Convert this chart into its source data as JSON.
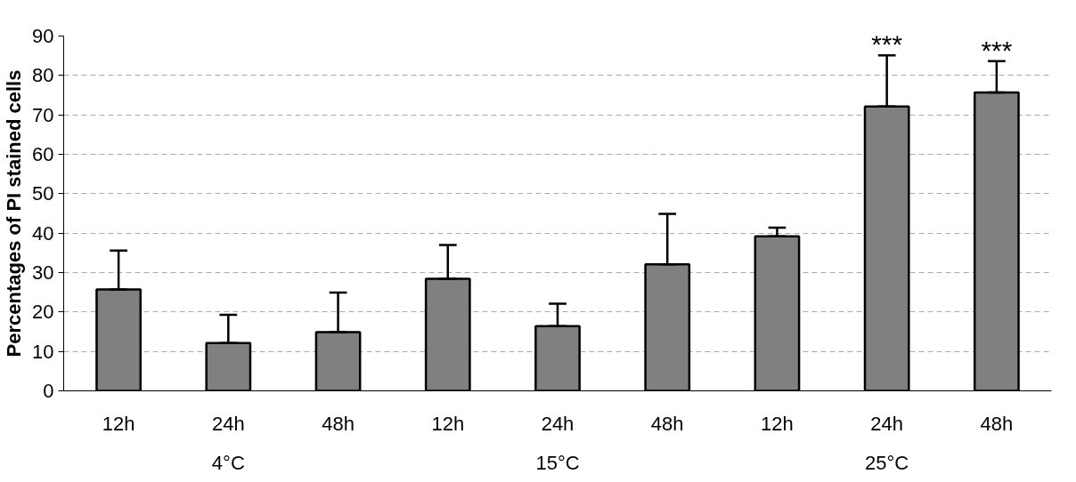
{
  "chart_data": {
    "type": "bar",
    "ylabel": "Percentages of PI stained cells",
    "categories": [
      "12h",
      "24h",
      "48h",
      "12h",
      "24h",
      "48h",
      "12h",
      "24h",
      "48h"
    ],
    "values": [
      25.7,
      12.1,
      14.9,
      28.4,
      16.4,
      32.1,
      39.2,
      72.1,
      75.7
    ],
    "errors": [
      [
        25.7,
        35.6
      ],
      [
        12.1,
        19.3
      ],
      [
        14.9,
        24.9
      ],
      [
        28.4,
        37.0
      ],
      [
        16.4,
        22.1
      ],
      [
        32.1,
        44.9
      ],
      [
        39.2,
        41.4
      ],
      [
        72.1,
        85.1
      ],
      [
        75.7,
        83.6
      ]
    ],
    "value_labels": [
      null,
      null,
      null,
      null,
      null,
      null,
      null,
      "***",
      "***"
    ],
    "annotations": [
      "4°C",
      "15°C",
      "25°C"
    ],
    "color": "#808080",
    "ylim": [
      0,
      90
    ],
    "yticks": [
      0,
      10,
      20,
      30,
      40,
      50,
      60,
      70,
      80,
      90
    ],
    "grid": "y"
  }
}
